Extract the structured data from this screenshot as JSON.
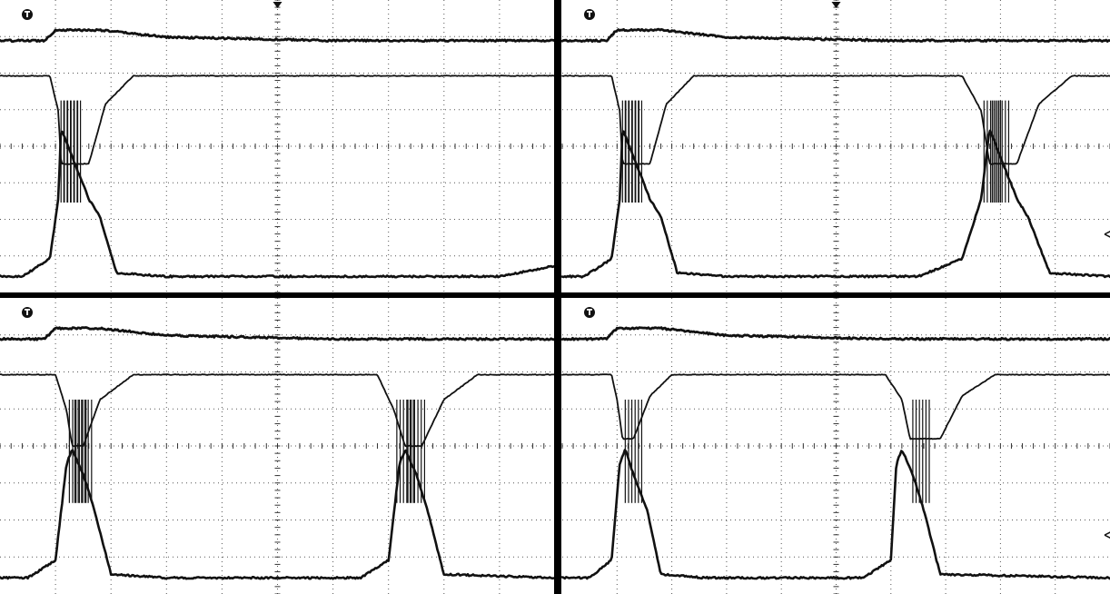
{
  "colors": {
    "background": "#ffffff",
    "trace": "#111111",
    "grid": "#555555",
    "divider": "#000000"
  },
  "icons": {
    "trigger_marker": "trigger-T-badge",
    "trigger_position_marker": "down-triangle",
    "ground_reference_marker": "left-arrow"
  },
  "chart_data": [
    {
      "type": "line",
      "panel": "top-left",
      "title": "",
      "xlabel": "",
      "ylabel": "",
      "grid": true,
      "xlim": [
        0,
        10
      ],
      "ylim": [
        0,
        8
      ],
      "series": [
        {
          "x": [
            0,
            0.8,
            1.0,
            1.8,
            3.0,
            6.0,
            8.0,
            10.0
          ],
          "values": [
            7.0,
            7.0,
            7.3,
            7.3,
            7.1,
            7.0,
            7.0,
            7.0
          ]
        },
        {
          "x": [
            0,
            0.9,
            1.05,
            1.1,
            1.6,
            1.9,
            2.4,
            3.0,
            10.0
          ],
          "values": [
            6.0,
            6.0,
            5.0,
            3.5,
            3.5,
            5.2,
            6.0,
            6.0,
            6.0
          ]
        },
        {
          "x": [
            0,
            0.4,
            0.9,
            1.05,
            1.1,
            1.6,
            1.8,
            2.1,
            3.0,
            9.0,
            10.0
          ],
          "values": [
            0.3,
            0.3,
            0.8,
            2.5,
            4.5,
            2.5,
            2.0,
            0.4,
            0.3,
            0.3,
            0.6
          ]
        }
      ]
    },
    {
      "type": "line",
      "panel": "top-right",
      "title": "",
      "xlabel": "",
      "ylabel": "",
      "grid": true,
      "xlim": [
        0,
        10
      ],
      "ylim": [
        0,
        8
      ],
      "series": [
        {
          "x": [
            0,
            0.8,
            1.0,
            1.8,
            3.0,
            6.0,
            7.5,
            10.0
          ],
          "values": [
            7.0,
            7.0,
            7.3,
            7.3,
            7.1,
            7.0,
            7.0,
            7.0
          ]
        },
        {
          "x": [
            0,
            0.9,
            1.05,
            1.1,
            1.6,
            1.9,
            2.4,
            3.0,
            7.3,
            7.65,
            7.8,
            8.3,
            8.7,
            9.3,
            10.0
          ],
          "values": [
            6.0,
            6.0,
            5.0,
            3.5,
            3.5,
            5.2,
            6.0,
            6.0,
            6.0,
            5.0,
            3.5,
            3.5,
            5.2,
            6.0,
            6.0
          ]
        },
        {
          "x": [
            0,
            0.4,
            0.9,
            1.05,
            1.1,
            1.6,
            1.8,
            2.1,
            3.0,
            6.5,
            7.3,
            7.65,
            7.8,
            8.3,
            8.5,
            8.9,
            10.0
          ],
          "values": [
            0.3,
            0.3,
            0.8,
            2.5,
            4.5,
            2.5,
            2.0,
            0.4,
            0.3,
            0.3,
            0.8,
            2.5,
            4.5,
            2.5,
            2.0,
            0.4,
            0.3
          ]
        }
      ]
    },
    {
      "type": "line",
      "panel": "bottom-left",
      "title": "",
      "xlabel": "",
      "ylabel": "",
      "grid": true,
      "xlim": [
        0,
        10
      ],
      "ylim": [
        0,
        8
      ],
      "series": [
        {
          "x": [
            0,
            0.8,
            1.0,
            1.8,
            3.0,
            6.0,
            7.5,
            10.0
          ],
          "values": [
            7.0,
            7.0,
            7.3,
            7.3,
            7.1,
            7.0,
            7.0,
            7.0
          ]
        },
        {
          "x": [
            0,
            1.0,
            1.2,
            1.3,
            1.5,
            1.8,
            2.4,
            3.0,
            6.8,
            7.1,
            7.3,
            7.4,
            7.6,
            8.0,
            8.6,
            10.0
          ],
          "values": [
            6.0,
            6.0,
            5.0,
            4.0,
            4.0,
            5.3,
            6.0,
            6.0,
            6.0,
            5.0,
            4.0,
            4.0,
            4.0,
            5.3,
            6.0,
            6.0
          ]
        },
        {
          "x": [
            0,
            0.5,
            1.0,
            1.2,
            1.3,
            1.5,
            1.7,
            2.0,
            3.0,
            6.5,
            7.0,
            7.2,
            7.3,
            7.5,
            7.7,
            8.0,
            10.0
          ],
          "values": [
            0.3,
            0.3,
            0.8,
            3.5,
            3.9,
            3.2,
            2.2,
            0.4,
            0.3,
            0.3,
            0.8,
            3.5,
            3.9,
            3.2,
            2.2,
            0.4,
            0.3
          ]
        }
      ]
    },
    {
      "type": "line",
      "panel": "bottom-right",
      "title": "",
      "xlabel": "",
      "ylabel": "",
      "grid": true,
      "xlim": [
        0,
        10
      ],
      "ylim": [
        0,
        8
      ],
      "series": [
        {
          "x": [
            0,
            0.8,
            1.0,
            1.8,
            3.0,
            6.0,
            7.5,
            10.0
          ],
          "values": [
            7.0,
            7.0,
            7.3,
            7.3,
            7.1,
            7.0,
            7.0,
            7.0
          ]
        },
        {
          "x": [
            0,
            0.9,
            1.0,
            1.1,
            1.3,
            1.6,
            2.0,
            2.6,
            5.9,
            6.2,
            6.35,
            6.6,
            6.9,
            7.3,
            7.9,
            10.0
          ],
          "values": [
            6.0,
            6.0,
            5.3,
            4.2,
            4.2,
            5.4,
            6.0,
            6.0,
            6.0,
            5.3,
            4.2,
            4.2,
            4.2,
            5.4,
            6.0,
            6.0
          ]
        },
        {
          "x": [
            0,
            0.5,
            0.9,
            1.05,
            1.15,
            1.3,
            1.55,
            1.8,
            2.6,
            5.5,
            6.0,
            6.1,
            6.2,
            6.4,
            6.6,
            6.9,
            10.0
          ],
          "values": [
            0.3,
            0.3,
            0.8,
            3.5,
            3.9,
            3.2,
            2.2,
            0.4,
            0.3,
            0.3,
            0.8,
            3.5,
            3.9,
            3.2,
            2.2,
            0.4,
            0.3
          ]
        }
      ]
    }
  ]
}
